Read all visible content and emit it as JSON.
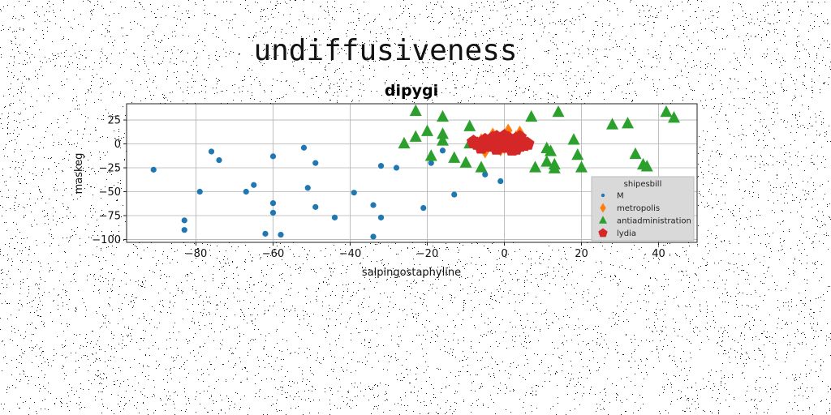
{
  "banner_text": "undiffusiveness",
  "chart_data": {
    "type": "scatter",
    "title": "dipygi",
    "xlabel": "salpingostaphyline",
    "ylabel": "maskeg",
    "xlim": [
      -98,
      50
    ],
    "ylim": [
      -103,
      42
    ],
    "xticks": [
      -80,
      -60,
      -40,
      -20,
      0,
      20,
      40
    ],
    "yticks": [
      25,
      0,
      -25,
      -50,
      -75,
      -100
    ],
    "xtick_labels": [
      "−80",
      "−60",
      "−40",
      "−20",
      "0",
      "20",
      "40"
    ],
    "ytick_labels": [
      "25",
      "0",
      "−25",
      "−50",
      "−75",
      "−100"
    ],
    "grid": true,
    "legend": {
      "title": "shipesbill",
      "placement": "lower-right"
    },
    "series": [
      {
        "name": "M",
        "color": "#1f77b4",
        "marker": "circle",
        "points": [
          [
            -91,
            -27
          ],
          [
            -83,
            -80
          ],
          [
            -83,
            -90
          ],
          [
            -76,
            -8
          ],
          [
            -74,
            -17
          ],
          [
            -79,
            -50
          ],
          [
            -67,
            -50
          ],
          [
            -65,
            -43
          ],
          [
            -62,
            -94
          ],
          [
            -60,
            -13
          ],
          [
            -60,
            -62
          ],
          [
            -60,
            -72
          ],
          [
            -58,
            -95
          ],
          [
            -52,
            -4
          ],
          [
            -51,
            -46
          ],
          [
            -49,
            -20
          ],
          [
            -49,
            -66
          ],
          [
            -44,
            -77
          ],
          [
            -39,
            -51
          ],
          [
            -34,
            -64
          ],
          [
            -34,
            -97
          ],
          [
            -32,
            -23
          ],
          [
            -32,
            -77
          ],
          [
            -28,
            -25
          ],
          [
            -21,
            -67
          ],
          [
            -19,
            -20
          ],
          [
            -16,
            -7
          ],
          [
            -13,
            -53
          ],
          [
            -5,
            -32
          ],
          [
            -1,
            -39
          ]
        ]
      },
      {
        "name": "metropolis",
        "color": "#ff7f0e",
        "marker": "diamond",
        "points": [
          [
            -5,
            -8
          ],
          [
            -3,
            10
          ],
          [
            -2,
            3
          ],
          [
            0,
            -4
          ],
          [
            1,
            8
          ],
          [
            2,
            2
          ],
          [
            3,
            -2
          ],
          [
            4,
            12
          ],
          [
            5,
            5
          ],
          [
            6,
            -1
          ],
          [
            -1,
            -6
          ],
          [
            -4,
            0
          ],
          [
            1,
            14
          ],
          [
            3,
            7
          ],
          [
            -6,
            4
          ],
          [
            0,
            0
          ]
        ]
      },
      {
        "name": "antiadministration",
        "color": "#2ca02c",
        "marker": "triangle",
        "points": [
          [
            -23,
            34
          ],
          [
            -26,
            0
          ],
          [
            -23,
            7
          ],
          [
            -20,
            13
          ],
          [
            -19,
            -13
          ],
          [
            -16,
            28
          ],
          [
            -16,
            10
          ],
          [
            -16,
            3
          ],
          [
            -13,
            -15
          ],
          [
            -10,
            -20
          ],
          [
            -9,
            18
          ],
          [
            -6,
            -25
          ],
          [
            -9,
            0
          ],
          [
            7,
            28
          ],
          [
            8,
            -25
          ],
          [
            11,
            -19
          ],
          [
            12,
            -8
          ],
          [
            13,
            -22
          ],
          [
            14,
            33
          ],
          [
            18,
            4
          ],
          [
            19,
            -12
          ],
          [
            20,
            -25
          ],
          [
            28,
            20
          ],
          [
            32,
            21
          ],
          [
            34,
            -11
          ],
          [
            36,
            -22
          ],
          [
            37,
            -24
          ],
          [
            42,
            33
          ],
          [
            44,
            27
          ],
          [
            11,
            -5
          ],
          [
            13,
            -26
          ]
        ]
      },
      {
        "name": "lydia",
        "color": "#d62728",
        "marker": "pentagon",
        "points": [
          [
            -7,
            0
          ],
          [
            -6,
            -4
          ],
          [
            -5,
            4
          ],
          [
            -4,
            -2
          ],
          [
            -3,
            2
          ],
          [
            -2,
            7
          ],
          [
            -2,
            -5
          ],
          [
            -1,
            0
          ],
          [
            0,
            3
          ],
          [
            0,
            -3
          ],
          [
            1,
            6
          ],
          [
            1,
            -1
          ],
          [
            2,
            2
          ],
          [
            2,
            -4
          ],
          [
            3,
            0
          ],
          [
            3,
            5
          ],
          [
            4,
            -2
          ],
          [
            4,
            3
          ],
          [
            5,
            1
          ],
          [
            5,
            -1
          ],
          [
            6,
            0
          ],
          [
            -5,
            -1
          ],
          [
            -3,
            6
          ],
          [
            0,
            8
          ],
          [
            2,
            -6
          ],
          [
            -8,
            2
          ],
          [
            -1,
            5
          ],
          [
            1,
            3
          ],
          [
            3,
            -5
          ],
          [
            4,
            7
          ]
        ]
      }
    ]
  }
}
